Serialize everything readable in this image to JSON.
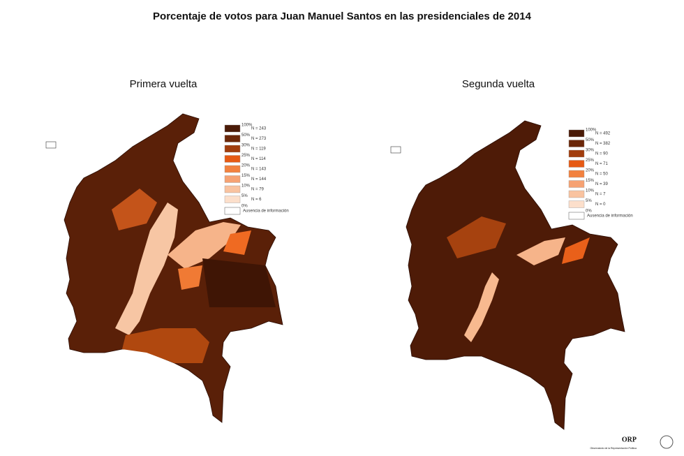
{
  "title": "Porcentaje de votos para Juan Manuel Santos en las presidenciales de 2014",
  "panels": [
    {
      "subtitle": "Primera vuelta",
      "legend": {
        "breaks": [
          "100%",
          "50%",
          "30%",
          "25%",
          "20%",
          "15%",
          "10%",
          "5%",
          "0%"
        ],
        "items": [
          {
            "color": "#4a1a07",
            "label": "N = 243"
          },
          {
            "color": "#6b2709",
            "label": "N = 273"
          },
          {
            "color": "#a13d0d",
            "label": "N = 119"
          },
          {
            "color": "#e65a14",
            "label": "N = 114"
          },
          {
            "color": "#f2813f",
            "label": "N = 143"
          },
          {
            "color": "#f6a273",
            "label": "N = 144"
          },
          {
            "color": "#f9c3a0",
            "label": "N = 79"
          },
          {
            "color": "#fcdfcb",
            "label": "N = 6"
          }
        ],
        "absence": "Ausencia de información"
      }
    },
    {
      "subtitle": "Segunda vuelta",
      "legend": {
        "breaks": [
          "100%",
          "50%",
          "30%",
          "25%",
          "20%",
          "15%",
          "10%",
          "5%",
          "0%"
        ],
        "items": [
          {
            "color": "#4a1a07",
            "label": "N = 492"
          },
          {
            "color": "#6b2709",
            "label": "N = 382"
          },
          {
            "color": "#a13d0d",
            "label": "N = 90"
          },
          {
            "color": "#e65a14",
            "label": "N = 71"
          },
          {
            "color": "#f2813f",
            "label": "N = 50"
          },
          {
            "color": "#f6a273",
            "label": "N = 39"
          },
          {
            "color": "#f9c3a0",
            "label": "N = 7"
          },
          {
            "color": "#fcdfcb",
            "label": "N = 0"
          }
        ],
        "absence": "Ausencia de información"
      }
    }
  ],
  "footer": {
    "logo": "ORP",
    "org": "Observatorio de la Representación Política"
  }
}
